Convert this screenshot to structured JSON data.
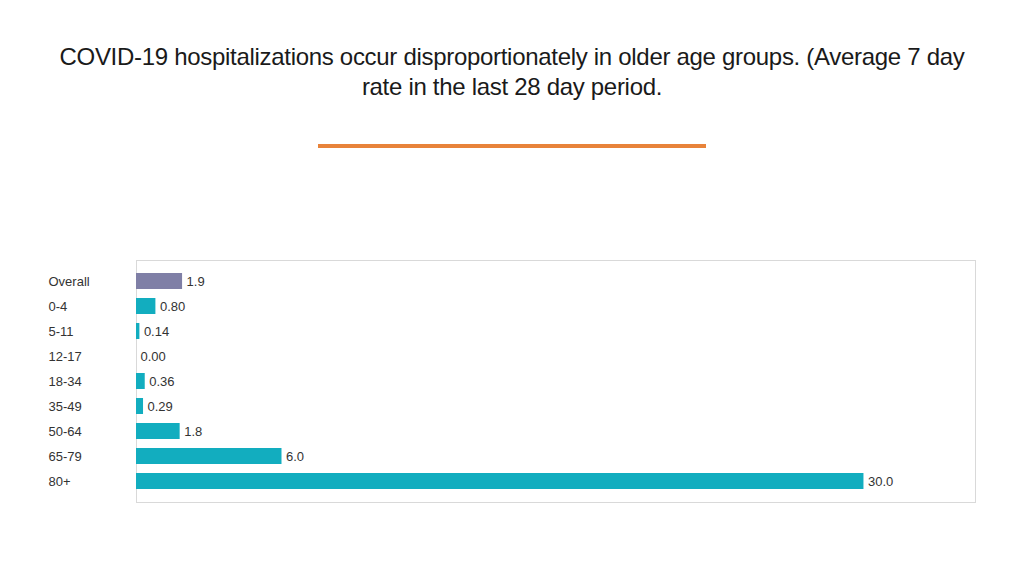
{
  "chart_data": {
    "type": "bar",
    "orientation": "horizontal",
    "title": "COVID-19 hospitalizations occur disproportionately in older age groups. (Average 7 day rate in the last 28 day period.",
    "categories": [
      "Overall",
      "0-4",
      "5-11",
      "12-17",
      "18-34",
      "35-49",
      "50-64",
      "65-79",
      "80+"
    ],
    "values": [
      1.9,
      0.8,
      0.14,
      0.0,
      0.36,
      0.29,
      1.8,
      6.0,
      30.0
    ],
    "value_labels": [
      "1.9",
      "0.80",
      "0.14",
      "0.00",
      "0.36",
      "0.29",
      "1.8",
      "6.0",
      "30.0"
    ],
    "colors": [
      "#7f7fa6",
      "#12adbf",
      "#12adbf",
      "#12adbf",
      "#12adbf",
      "#12adbf",
      "#12adbf",
      "#12adbf",
      "#12adbf"
    ],
    "xlim": [
      0,
      34.6
    ],
    "data_labels": true,
    "tick_labels": "y"
  }
}
